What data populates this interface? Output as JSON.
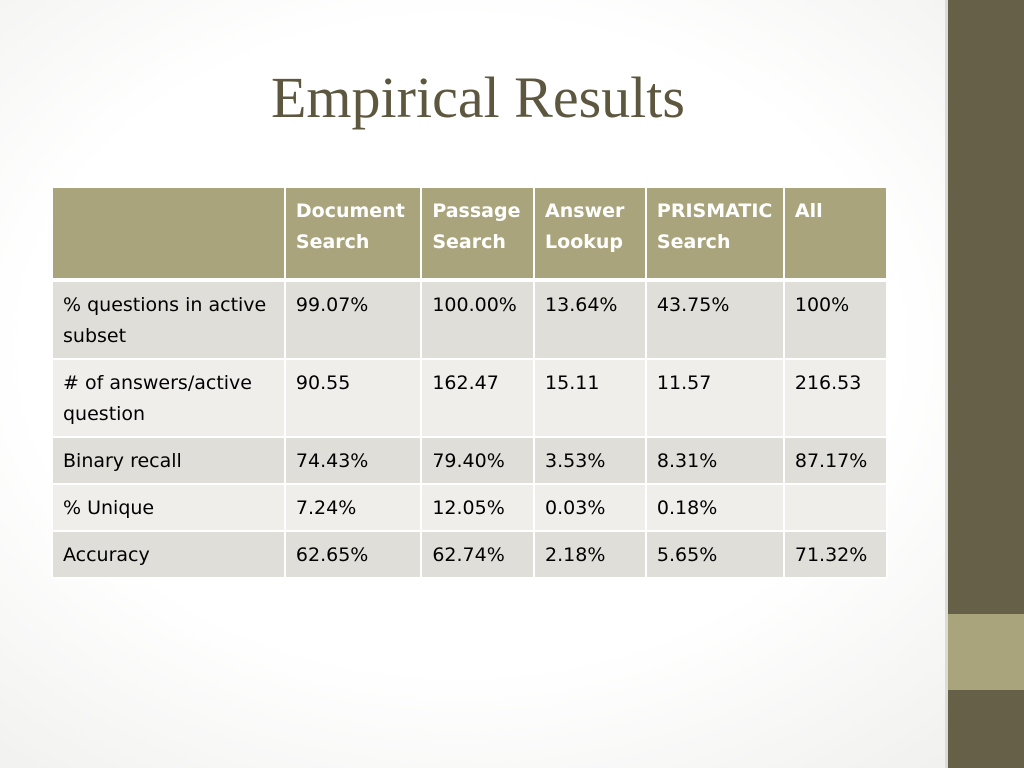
{
  "slide": {
    "title": "Empirical Results"
  },
  "table": {
    "columns": [
      [
        "",
        ""
      ],
      [
        "Document",
        "Search"
      ],
      [
        "Passage",
        "Search"
      ],
      [
        "Answer",
        "Lookup"
      ],
      [
        "PRISMATIC",
        "Search"
      ],
      [
        "All",
        ""
      ]
    ],
    "rows": [
      [
        "% questions in active subset",
        "99.07%",
        "100.00%",
        "13.64%",
        "43.75%",
        "100%"
      ],
      [
        "# of answers/active question",
        "90.55",
        "162.47",
        "15.11",
        "11.57",
        "216.53"
      ],
      [
        "Binary recall",
        "74.43%",
        "79.40%",
        "3.53%",
        "8.31%",
        "87.17%"
      ],
      [
        "% Unique",
        "7.24%",
        "12.05%",
        "0.03%",
        "0.18%",
        ""
      ],
      [
        "Accuracy",
        "62.65%",
        "62.74%",
        "2.18%",
        "5.65%",
        "71.32%"
      ]
    ]
  },
  "theme": {
    "title_color": "#5d573f",
    "header_bg": "#a9a47c",
    "row_odd_bg": "#dfded8",
    "row_even_bg": "#efeeeb",
    "sidebar_color": "#676049",
    "sidebar_accent": "#a9a47c"
  }
}
